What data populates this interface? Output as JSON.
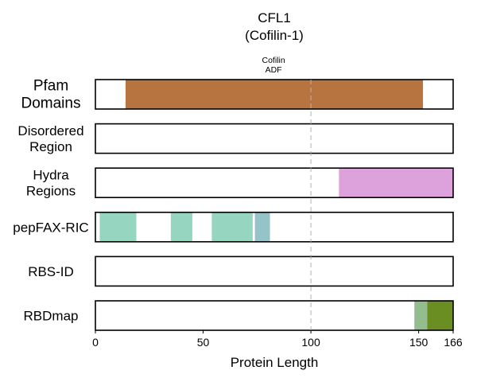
{
  "chart_data": {
    "type": "bar",
    "title": "CFL1",
    "subtitle": "(Cofilin-1)",
    "xlabel": "Protein Length",
    "xlim": [
      0,
      166
    ],
    "xticks": [
      0,
      50,
      100,
      150,
      166
    ],
    "reference_line_x": 100,
    "grid": false,
    "tracks": [
      {
        "label_lines": [
          "Pfam",
          "Domains"
        ],
        "segments": [
          {
            "start": 14,
            "end": 152,
            "color": "#b87440",
            "label": "Cofilin ADF"
          }
        ]
      },
      {
        "label_lines": [
          "Disordered",
          "Region"
        ],
        "segments": []
      },
      {
        "label_lines": [
          "Hydra",
          "Regions"
        ],
        "segments": [
          {
            "start": 113,
            "end": 166,
            "color": "#dda2dc"
          }
        ]
      },
      {
        "label_lines": [
          "pepFAX-RIC"
        ],
        "segments": [
          {
            "start": 2,
            "end": 19,
            "color": "#96d6c1"
          },
          {
            "start": 35,
            "end": 45,
            "color": "#96d6c1"
          },
          {
            "start": 54,
            "end": 73,
            "color": "#96d6c1"
          },
          {
            "start": 74,
            "end": 81,
            "color": "#94c4c8"
          }
        ]
      },
      {
        "label_lines": [
          "RBS-ID"
        ],
        "segments": []
      },
      {
        "label_lines": [
          "RBDmap"
        ],
        "segments": [
          {
            "start": 148,
            "end": 154,
            "color": "#93bd8f"
          },
          {
            "start": 154,
            "end": 166,
            "color": "#6b8e23"
          }
        ]
      }
    ]
  }
}
